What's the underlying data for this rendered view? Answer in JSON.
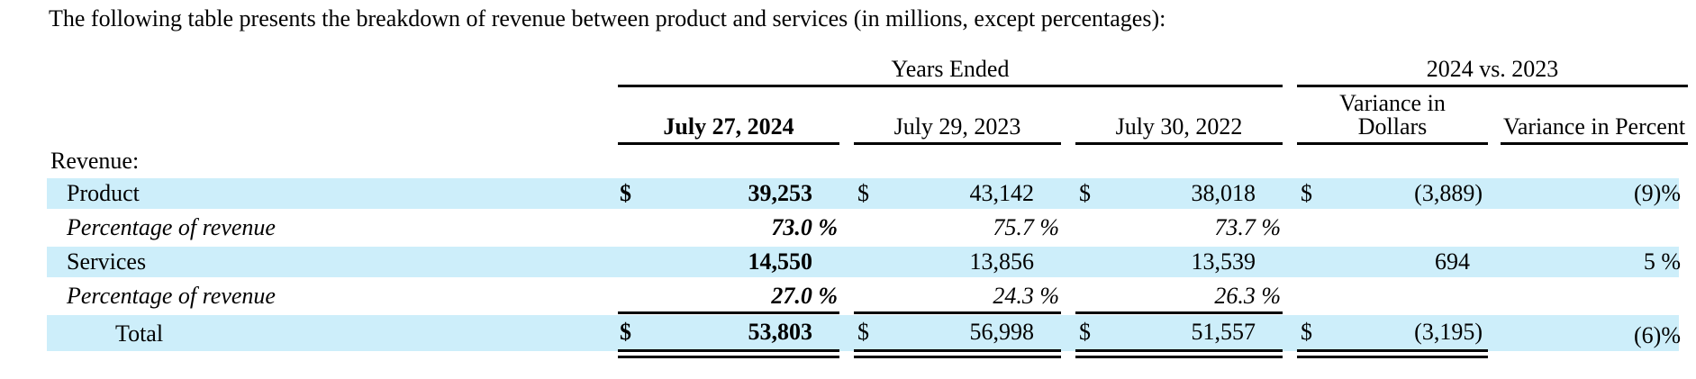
{
  "intro_text": "The following table presents the breakdown of revenue between product and services (in millions, except percentages):",
  "headers": {
    "years_ended": "Years Ended",
    "comparison": "2024 vs. 2023",
    "col_2024": "July 27, 2024",
    "col_2023": "July 29, 2023",
    "col_2022": "July 30, 2022",
    "variance_dollars_line1": "Variance in",
    "variance_dollars_line2": "Dollars",
    "variance_percent": "Variance in Percent"
  },
  "section_label": "Revenue:",
  "currency_symbol": "$",
  "rows": {
    "product": {
      "label": "Product",
      "y2024": "39,253",
      "y2023": "43,142",
      "y2022": "38,018",
      "var_dollars": "(3,889)",
      "var_percent": "(9)%"
    },
    "product_pct": {
      "label": "Percentage of revenue",
      "y2024": "73.0 %",
      "y2023": "75.7 %",
      "y2022": "73.7 %"
    },
    "services": {
      "label": "Services",
      "y2024": "14,550",
      "y2023": "13,856",
      "y2022": "13,539",
      "var_dollars": "694",
      "var_percent": "5 %"
    },
    "services_pct": {
      "label": "Percentage of revenue",
      "y2024": "27.0 %",
      "y2023": "24.3 %",
      "y2022": "26.3 %"
    },
    "total": {
      "label": "Total",
      "y2024": "53,803",
      "y2023": "56,998",
      "y2022": "51,557",
      "var_dollars": "(3,195)",
      "var_percent": "(6)%"
    }
  },
  "colors": {
    "row_highlight": "#cdeefa",
    "text": "#000000",
    "rule": "#000000"
  }
}
